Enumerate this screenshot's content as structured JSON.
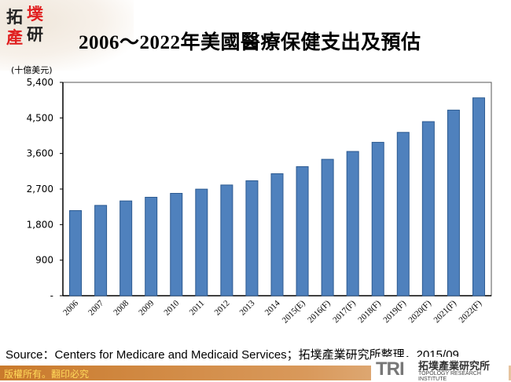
{
  "header": {
    "logo_text": [
      "拓",
      "墣",
      "產",
      "研"
    ],
    "title": "2006～2022年美國醫療保健支出及預估"
  },
  "chart_data": {
    "type": "bar",
    "title": "2006～2022年美國醫療保健支出及預估",
    "ylabel": "(十億美元)",
    "xlabel": "",
    "categories": [
      "2006",
      "2007",
      "2008",
      "2009",
      "2010",
      "2011",
      "2012",
      "2013",
      "2014",
      "2015(E)",
      "2016(F)",
      "2017(F)",
      "2018(F)",
      "2019(F)",
      "2020(F)",
      "2021(F)",
      "2022(F)"
    ],
    "values": [
      2155,
      2286,
      2399,
      2492,
      2591,
      2697,
      2802,
      2910,
      3088,
      3267,
      3452,
      3651,
      3883,
      4134,
      4406,
      4698,
      5008
    ],
    "ylim": [
      0,
      5400
    ],
    "yticks": [
      0,
      900,
      1800,
      2700,
      3600,
      4500,
      5400
    ],
    "ytick_labels": [
      "-",
      "900",
      "1,800",
      "2,700",
      "3,600",
      "4,500",
      "5,400"
    ],
    "grid": false,
    "legend": "none",
    "bar_color": "#4f81bd",
    "bar_edge_color": "#2c5a91"
  },
  "source": "Source：Centers for Medicare and Medicaid Services；拓墣產業研究所整理，2015/09",
  "footer": {
    "copyright": "版權所有。翻印必究",
    "brand_mark": "TRI",
    "brand_cn": "拓墣產業研究所",
    "brand_en": "TOPOLOGY RESEARCH INSTITUTE"
  }
}
